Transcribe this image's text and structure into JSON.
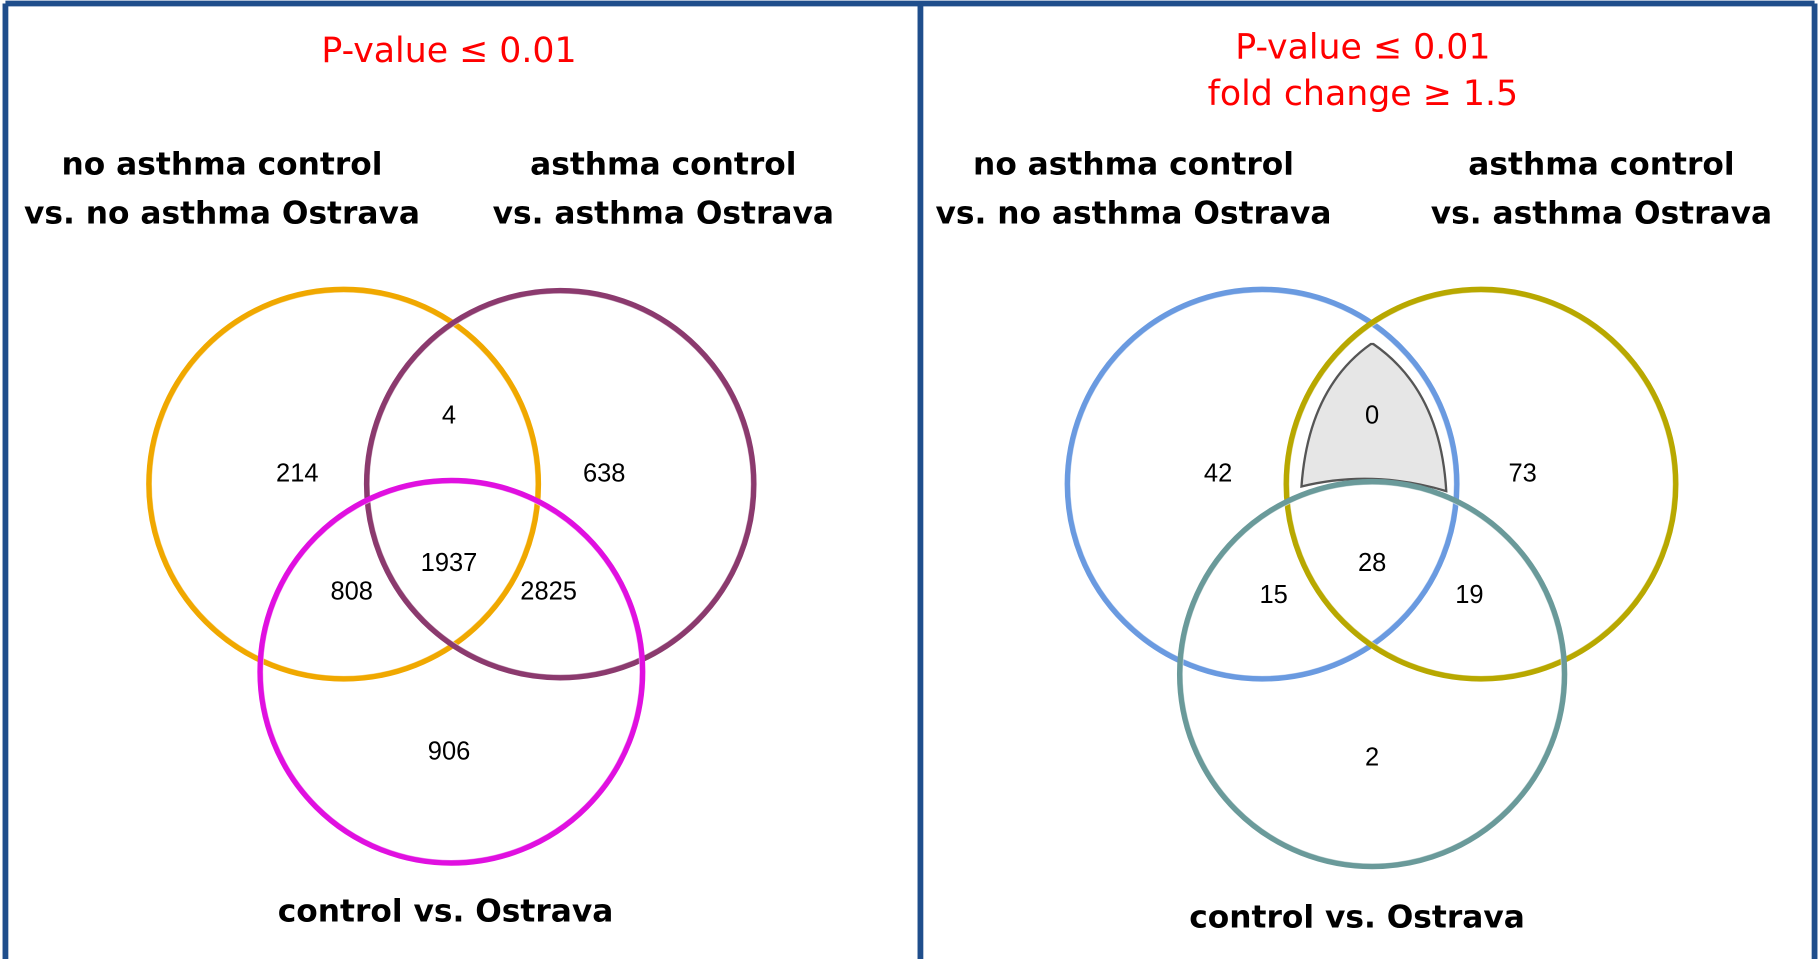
{
  "panels": [
    {
      "title": [
        "P-value ≤ 0.01"
      ],
      "sets": [
        {
          "label": [
            "no asthma control",
            "vs. no asthma Ostrava"
          ]
        },
        {
          "label": [
            "asthma control",
            "vs. asthma Ostrava"
          ]
        },
        {
          "label": [
            "control vs. Ostrava"
          ]
        }
      ],
      "regions": {
        "a_only": "214",
        "ab": "4",
        "b_only": "638",
        "ac": "808",
        "abc": "1937",
        "bc": "2825",
        "c_only": "906"
      }
    },
    {
      "title": [
        "P-value ≤  0.01",
        "fold change ≥ 1.5"
      ],
      "sets": [
        {
          "label": [
            "no asthma control",
            "vs. no asthma Ostrava"
          ]
        },
        {
          "label": [
            "asthma control",
            "vs. asthma Ostrava"
          ]
        },
        {
          "label": [
            "control vs. Ostrava"
          ]
        }
      ],
      "regions": {
        "a_only": "42",
        "ab": "0",
        "b_only": "73",
        "ac": "15",
        "abc": "28",
        "bc": "19",
        "c_only": "2"
      }
    }
  ]
}
